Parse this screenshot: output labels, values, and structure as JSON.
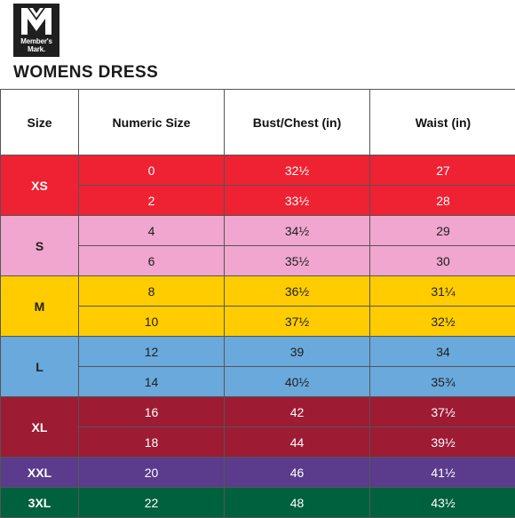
{
  "logo": {
    "line1": "Member's",
    "line2": "Mark."
  },
  "title": "WOMENS DRESS",
  "headers": [
    "Size",
    "Numeric Size",
    "Bust/Chest (in)",
    "Waist (in)"
  ],
  "groups": [
    {
      "size": "XS",
      "color": "#ee2233",
      "text": "dark",
      "rows": [
        [
          "0",
          "32½",
          "27"
        ],
        [
          "2",
          "33½",
          "28"
        ]
      ]
    },
    {
      "size": "S",
      "color": "#f0a6cf",
      "text": "light",
      "rows": [
        [
          "4",
          "34½",
          "29"
        ],
        [
          "6",
          "35½",
          "30"
        ]
      ]
    },
    {
      "size": "M",
      "color": "#ffcc00",
      "text": "light",
      "rows": [
        [
          "8",
          "36½",
          "31¼"
        ],
        [
          "10",
          "37½",
          "32½"
        ]
      ]
    },
    {
      "size": "L",
      "color": "#6aa9dc",
      "text": "light",
      "rows": [
        [
          "12",
          "39",
          "34"
        ],
        [
          "14",
          "40½",
          "35¾"
        ]
      ]
    },
    {
      "size": "XL",
      "color": "#9e1b34",
      "text": "dark",
      "rows": [
        [
          "16",
          "42",
          "37½"
        ],
        [
          "18",
          "44",
          "39½"
        ]
      ]
    },
    {
      "size": "XXL",
      "color": "#5a3b8c",
      "text": "dark",
      "rows": [
        [
          "20",
          "46",
          "41½"
        ]
      ]
    },
    {
      "size": "3XL",
      "color": "#00613f",
      "text": "dark",
      "rows": [
        [
          "22",
          "48",
          "43½"
        ]
      ]
    }
  ]
}
